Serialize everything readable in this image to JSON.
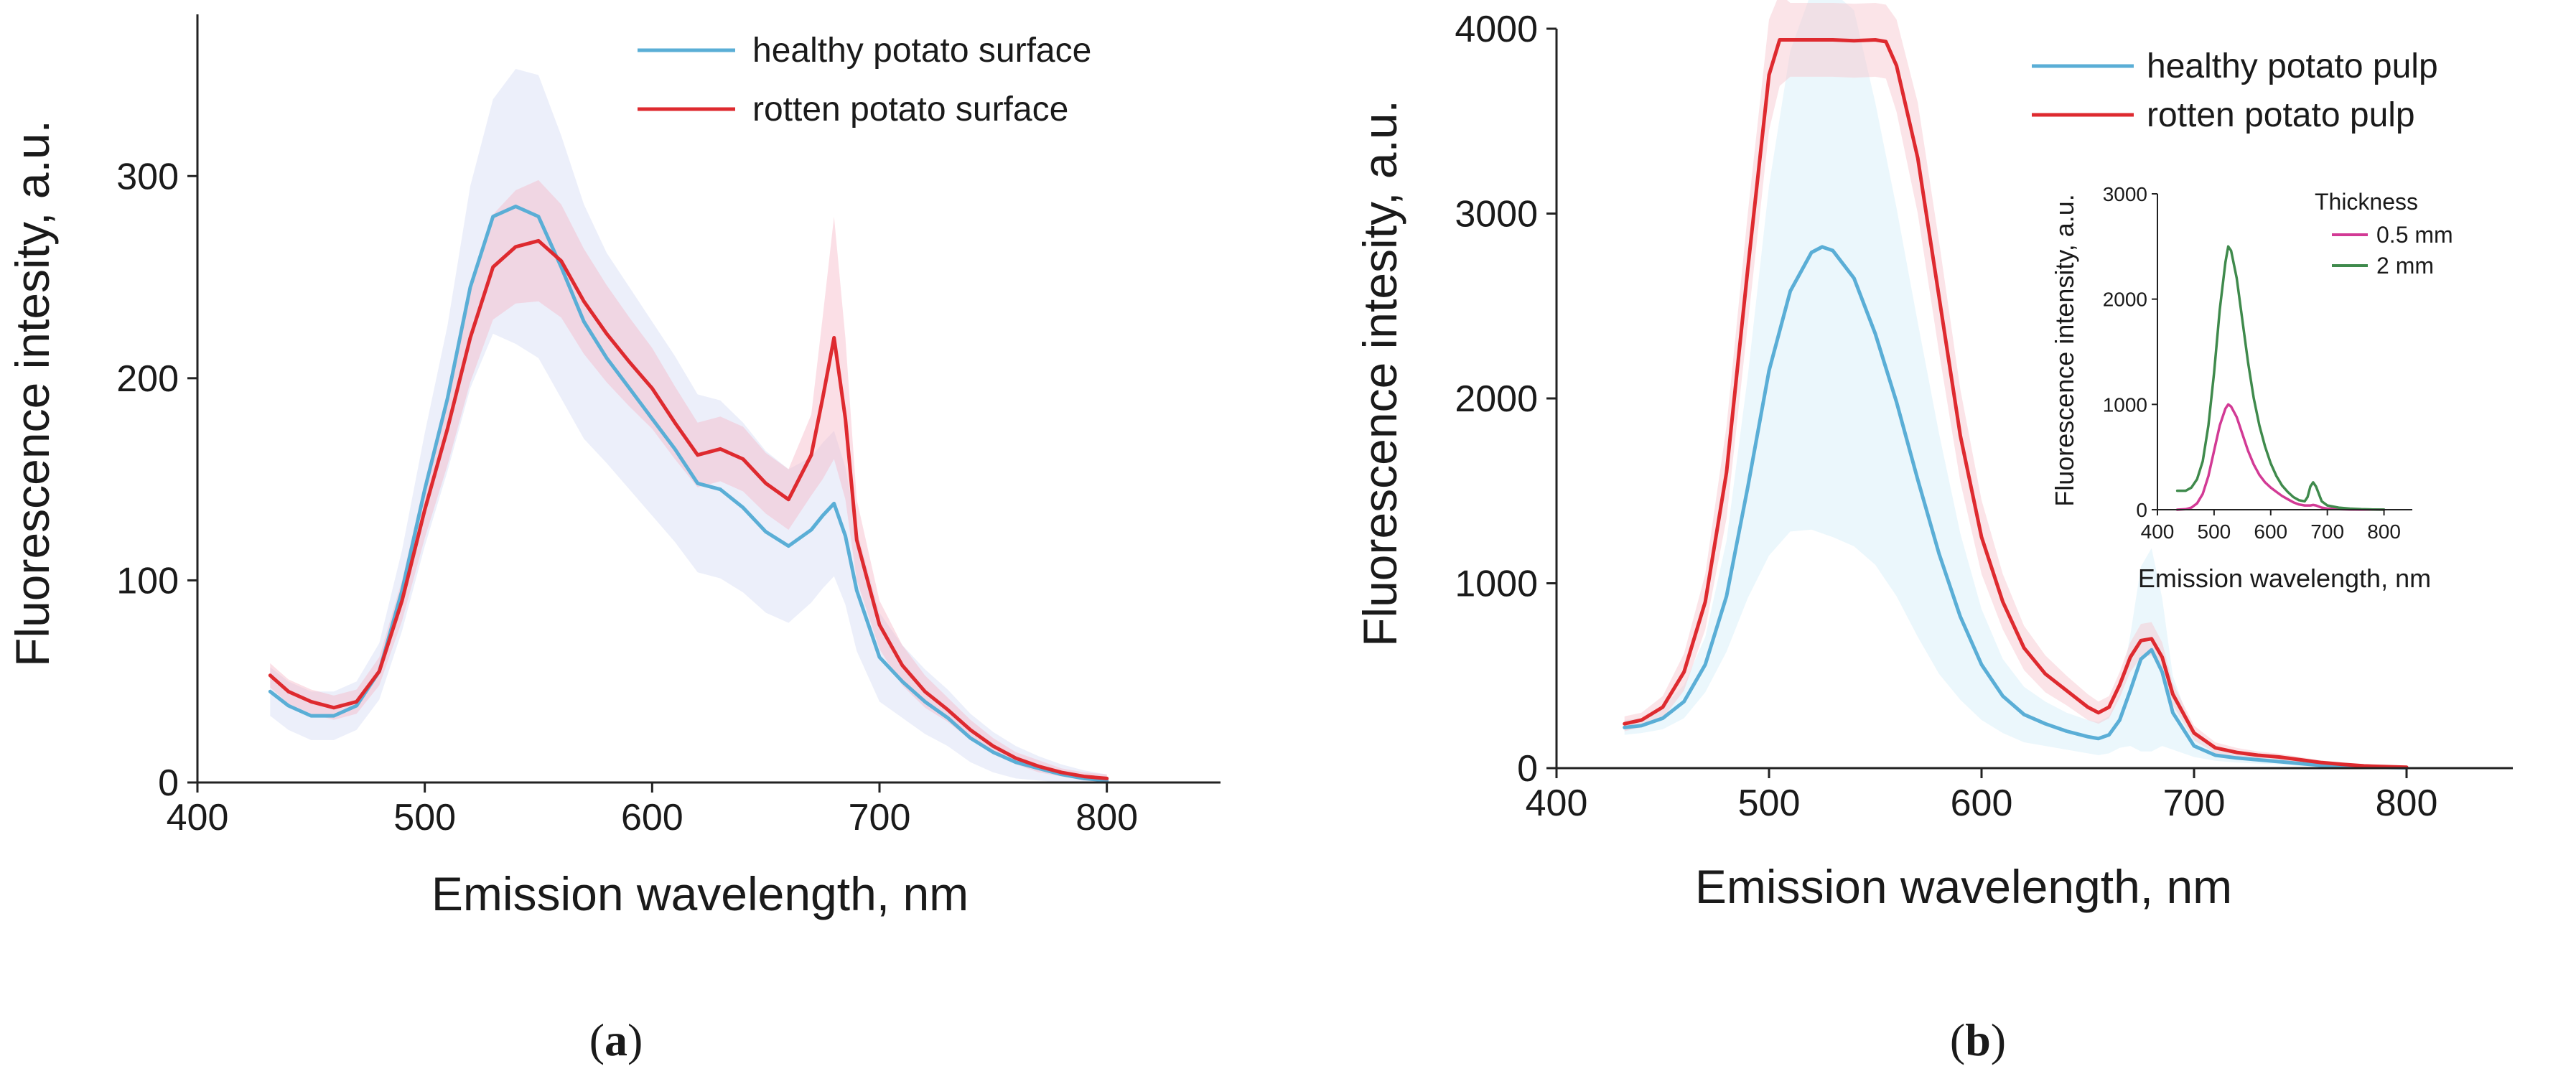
{
  "chart_data": [
    {
      "panel": "a",
      "type": "line",
      "panel_label": {
        "open": "(",
        "letter": "a",
        "close": ")"
      },
      "xlabel": "Emission wavelength, nm",
      "ylabel": "Fluorescence intesity, a.u.",
      "xlim": [
        400,
        850
      ],
      "ylim": [
        0,
        380
      ],
      "xticks": [
        400,
        500,
        600,
        700,
        800
      ],
      "yticks": [
        0,
        100,
        200,
        300
      ],
      "legend_position": "top-right",
      "series": [
        {
          "name": "healthy potato surface",
          "color": "#5aaed6",
          "band_color": "#c9d2f2",
          "x": [
            432,
            440,
            450,
            460,
            470,
            480,
            490,
            500,
            510,
            520,
            530,
            540,
            550,
            560,
            570,
            580,
            590,
            600,
            610,
            620,
            630,
            640,
            650,
            660,
            670,
            675,
            680,
            685,
            690,
            700,
            710,
            720,
            730,
            740,
            750,
            760,
            770,
            780,
            790,
            800
          ],
          "y": [
            45,
            38,
            33,
            33,
            38,
            55,
            95,
            145,
            190,
            245,
            280,
            285,
            280,
            255,
            228,
            210,
            195,
            180,
            165,
            148,
            145,
            136,
            124,
            117,
            125,
            132,
            138,
            122,
            95,
            62,
            50,
            40,
            32,
            22,
            15,
            10,
            7,
            4,
            2,
            1
          ],
          "band": [
            12,
            12,
            12,
            12,
            12,
            14,
            20,
            28,
            36,
            50,
            58,
            68,
            70,
            65,
            58,
            52,
            50,
            48,
            46,
            44,
            44,
            42,
            40,
            38,
            36,
            36,
            36,
            34,
            30,
            22,
            18,
            16,
            14,
            12,
            10,
            8,
            6,
            5,
            4,
            3
          ]
        },
        {
          "name": "rotten potato surface",
          "color": "#de2a2f",
          "band_color": "#f6b8c8",
          "x": [
            432,
            440,
            450,
            460,
            470,
            480,
            490,
            500,
            510,
            520,
            530,
            540,
            550,
            560,
            570,
            580,
            590,
            600,
            610,
            620,
            630,
            640,
            650,
            660,
            670,
            675,
            680,
            685,
            690,
            700,
            710,
            720,
            730,
            740,
            750,
            760,
            770,
            780,
            790,
            800
          ],
          "y": [
            53,
            45,
            40,
            37,
            40,
            55,
            90,
            135,
            175,
            220,
            255,
            265,
            268,
            258,
            238,
            222,
            208,
            195,
            178,
            162,
            165,
            160,
            148,
            140,
            162,
            190,
            220,
            180,
            120,
            78,
            58,
            45,
            36,
            26,
            18,
            12,
            8,
            5,
            3,
            2
          ],
          "band": [
            6,
            6,
            6,
            6,
            6,
            7,
            10,
            14,
            18,
            22,
            26,
            28,
            30,
            28,
            26,
            24,
            22,
            20,
            18,
            16,
            16,
            16,
            15,
            15,
            20,
            40,
            60,
            40,
            20,
            12,
            10,
            8,
            6,
            5,
            4,
            3,
            3,
            2,
            2,
            2
          ]
        }
      ]
    },
    {
      "panel": "b",
      "type": "line",
      "panel_label": {
        "open": "(",
        "letter": "b",
        "close": ")"
      },
      "xlabel": "Emission wavelength, nm",
      "ylabel": "Fluorescence intesity, a.u.",
      "xlim": [
        400,
        850
      ],
      "ylim": [
        0,
        4000
      ],
      "xticks": [
        400,
        500,
        600,
        700,
        800
      ],
      "yticks": [
        0,
        1000,
        2000,
        3000,
        4000
      ],
      "legend_position": "top-right",
      "series": [
        {
          "name": "healthy potato pulp",
          "color": "#5aaed6",
          "band_color": "#c6e7f5",
          "x": [
            432,
            440,
            450,
            460,
            470,
            480,
            490,
            500,
            510,
            520,
            525,
            530,
            540,
            550,
            560,
            570,
            580,
            590,
            600,
            610,
            620,
            630,
            640,
            650,
            655,
            660,
            665,
            670,
            675,
            680,
            685,
            690,
            700,
            710,
            720,
            730,
            740,
            750,
            760,
            770,
            780,
            790,
            800
          ],
          "y": [
            220,
            230,
            270,
            360,
            560,
            930,
            1520,
            2150,
            2580,
            2790,
            2820,
            2800,
            2650,
            2350,
            1980,
            1560,
            1160,
            820,
            560,
            390,
            290,
            240,
            200,
            170,
            160,
            180,
            260,
            420,
            590,
            640,
            520,
            300,
            120,
            70,
            55,
            45,
            35,
            25,
            15,
            10,
            6,
            4,
            2
          ],
          "band": [
            40,
            40,
            60,
            90,
            150,
            300,
            600,
            1000,
            1300,
            1500,
            1550,
            1550,
            1450,
            1250,
            1050,
            850,
            650,
            450,
            300,
            200,
            150,
            120,
            100,
            90,
            90,
            100,
            150,
            300,
            500,
            550,
            400,
            200,
            60,
            30,
            25,
            20,
            15,
            12,
            10,
            8,
            5,
            3,
            2
          ]
        },
        {
          "name": "rotten potato pulp",
          "color": "#de2a2f",
          "band_color": "#f6c3cc",
          "x": [
            432,
            440,
            450,
            460,
            470,
            480,
            490,
            500,
            505,
            510,
            520,
            530,
            540,
            550,
            555,
            560,
            570,
            580,
            590,
            600,
            610,
            620,
            630,
            640,
            650,
            655,
            660,
            665,
            670,
            675,
            680,
            685,
            690,
            700,
            710,
            720,
            730,
            740,
            750,
            760,
            770,
            780,
            790,
            800
          ],
          "y": [
            240,
            260,
            330,
            520,
            900,
            1600,
            2700,
            3750,
            3940,
            3940,
            3940,
            3940,
            3935,
            3940,
            3930,
            3800,
            3300,
            2550,
            1800,
            1250,
            900,
            650,
            510,
            420,
            330,
            300,
            330,
            450,
            600,
            690,
            700,
            600,
            400,
            190,
            110,
            85,
            70,
            60,
            45,
            30,
            20,
            12,
            8,
            5
          ],
          "band": [
            40,
            40,
            60,
            100,
            150,
            250,
            300,
            300,
            250,
            200,
            200,
            200,
            200,
            200,
            200,
            250,
            300,
            300,
            250,
            200,
            150,
            120,
            100,
            80,
            70,
            60,
            60,
            70,
            80,
            90,
            90,
            80,
            60,
            40,
            30,
            25,
            20,
            18,
            15,
            12,
            10,
            8,
            6,
            5
          ]
        }
      ]
    },
    {
      "panel": "b-inset",
      "type": "line",
      "xlabel": "Emission wavelength, nm",
      "ylabel": "Fluorescence intensity, a.u.",
      "xlim": [
        400,
        850
      ],
      "ylim": [
        0,
        3000
      ],
      "xticks": [
        400,
        500,
        600,
        700,
        800
      ],
      "yticks": [
        0,
        1000,
        2000,
        3000
      ],
      "legend_title": "Thickness",
      "legend_position": "top-right",
      "series": [
        {
          "name": "0.5 mm",
          "color": "#d23a95",
          "x": [
            435,
            450,
            460,
            470,
            480,
            490,
            500,
            510,
            520,
            525,
            530,
            540,
            550,
            560,
            570,
            580,
            590,
            600,
            610,
            620,
            630,
            640,
            650,
            660,
            670,
            675,
            680,
            690,
            700,
            720,
            740,
            760,
            780,
            800
          ],
          "y": [
            0,
            5,
            20,
            60,
            150,
            320,
            560,
            800,
            960,
            1000,
            980,
            880,
            720,
            560,
            430,
            330,
            260,
            210,
            170,
            130,
            100,
            70,
            50,
            40,
            40,
            45,
            40,
            20,
            10,
            5,
            2,
            1,
            1,
            0
          ]
        },
        {
          "name": "2 mm",
          "color": "#3f8a4c",
          "x": [
            435,
            450,
            460,
            470,
            480,
            490,
            500,
            510,
            520,
            525,
            530,
            540,
            550,
            560,
            570,
            580,
            590,
            600,
            610,
            620,
            630,
            640,
            650,
            660,
            665,
            670,
            675,
            680,
            690,
            700,
            720,
            740,
            760,
            780,
            800
          ],
          "y": [
            180,
            180,
            210,
            290,
            460,
            800,
            1300,
            1900,
            2350,
            2500,
            2460,
            2200,
            1800,
            1400,
            1060,
            800,
            600,
            440,
            320,
            230,
            170,
            120,
            90,
            80,
            120,
            220,
            260,
            220,
            80,
            40,
            20,
            10,
            5,
            2,
            1
          ]
        }
      ]
    }
  ]
}
